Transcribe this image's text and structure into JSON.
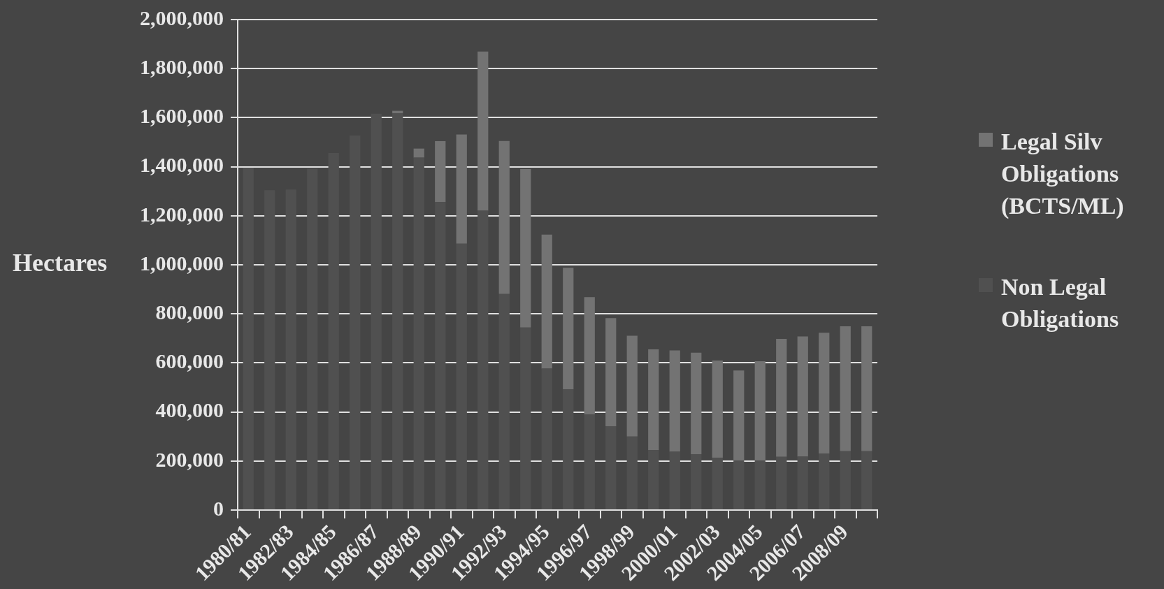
{
  "chart_data": {
    "type": "bar",
    "stacked": true,
    "ylabel": "Hectares",
    "categories": [
      "1980/81",
      null,
      "1982/83",
      null,
      "1984/85",
      null,
      "1986/87",
      null,
      "1988/89",
      null,
      "1990/91",
      null,
      "1992/93",
      null,
      "1994/95",
      null,
      "1996/97",
      null,
      "1998/99",
      null,
      "2000/01",
      null,
      "2002/03",
      null,
      "2004/05",
      null,
      "2006/07",
      null,
      "2008/09",
      null
    ],
    "series": [
      {
        "name": "Non Legal Obligations",
        "color": "#505050",
        "values": [
          1395000,
          1304000,
          1307000,
          1392000,
          1456000,
          1527000,
          1616000,
          1618000,
          1437000,
          1256000,
          1086000,
          1221000,
          881000,
          744000,
          577000,
          492000,
          390000,
          342000,
          300000,
          244000,
          238000,
          228000,
          214000,
          202000,
          202000,
          217000,
          218000,
          230000,
          240000,
          240000
        ]
      },
      {
        "name": "Legal Silv Obligations (BCTS/ML)",
        "color": "#737373",
        "values": [
          0,
          0,
          0,
          0,
          0,
          0,
          0,
          10000,
          37000,
          248000,
          445000,
          649000,
          624000,
          646000,
          546000,
          496000,
          478000,
          441000,
          411000,
          411000,
          413000,
          414000,
          396000,
          367000,
          405000,
          481000,
          490000,
          493000,
          509000,
          509000
        ]
      }
    ],
    "ylim": [
      0,
      2000000
    ],
    "yticks": [
      0,
      {
        "value": 200000,
        "label": "200,000"
      },
      {
        "value": 400000,
        "label": "400,000"
      },
      {
        "value": 600000,
        "label": "600,000"
      },
      {
        "value": 800000,
        "label": "800,000"
      },
      {
        "value": 1000000,
        "label": "1,000,000"
      },
      {
        "value": 1200000,
        "label": "1,200,000"
      },
      {
        "value": 1400000,
        "label": "1,400,000"
      },
      {
        "value": 1600000,
        "label": "1,600,000"
      },
      {
        "value": 1800000,
        "label": "1,800,000"
      },
      {
        "value": 2000000,
        "label": "2,000,000"
      }
    ],
    "grid": "y",
    "legend": "right"
  }
}
